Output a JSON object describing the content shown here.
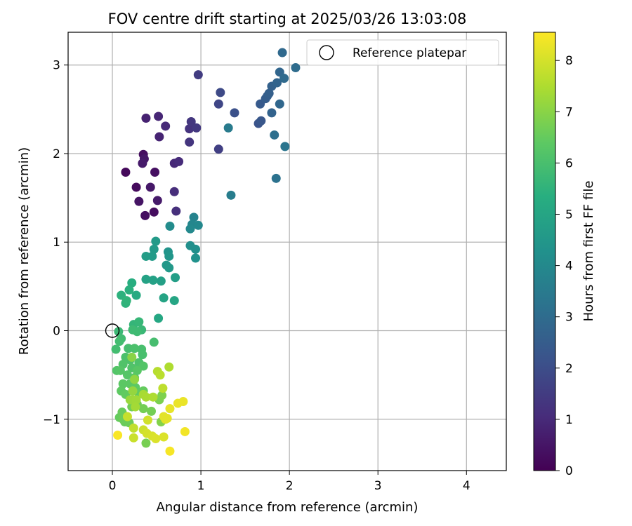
{
  "chart_data": {
    "type": "scatter",
    "title": "FOV centre drift starting at 2025/03/26 13:03:08",
    "xlabel": "Angular distance from reference (arcmin)",
    "ylabel": "Rotation from reference (arcmin)",
    "xlim": [
      -0.5,
      4.45
    ],
    "ylim": [
      -1.58,
      3.37
    ],
    "xticks": [
      "0",
      "1",
      "2",
      "3",
      "4"
    ],
    "yticks": [
      "−1",
      "0",
      "1",
      "2",
      "3"
    ],
    "grid": true,
    "legend": {
      "placement": "top-right",
      "entries": [
        "Reference platepar"
      ]
    },
    "reference_point": {
      "x": 0,
      "y": 0
    },
    "colorbar": {
      "label": "Hours from first FF file",
      "range": [
        0,
        8.55
      ],
      "ticks": [
        "0",
        "1",
        "2",
        "3",
        "4",
        "5",
        "6",
        "7",
        "8"
      ],
      "colormap": "viridis"
    },
    "points": [
      {
        "x": 0.15,
        "y": 1.79,
        "h": 0.2
      },
      {
        "x": 0.27,
        "y": 1.62,
        "h": 0.25
      },
      {
        "x": 0.35,
        "y": 1.99,
        "h": 0.3
      },
      {
        "x": 0.37,
        "y": 1.3,
        "h": 0.35
      },
      {
        "x": 0.47,
        "y": 1.34,
        "h": 0.3
      },
      {
        "x": 0.48,
        "y": 1.79,
        "h": 0.35
      },
      {
        "x": 0.3,
        "y": 1.46,
        "h": 0.45
      },
      {
        "x": 0.36,
        "y": 1.94,
        "h": 0.5
      },
      {
        "x": 0.34,
        "y": 1.89,
        "h": 0.6
      },
      {
        "x": 0.43,
        "y": 1.62,
        "h": 0.55
      },
      {
        "x": 0.51,
        "y": 1.47,
        "h": 0.6
      },
      {
        "x": 0.38,
        "y": 2.4,
        "h": 0.8
      },
      {
        "x": 0.52,
        "y": 2.42,
        "h": 0.9
      },
      {
        "x": 0.53,
        "y": 2.19,
        "h": 0.85
      },
      {
        "x": 0.6,
        "y": 2.31,
        "h": 1.0
      },
      {
        "x": 0.7,
        "y": 1.89,
        "h": 0.95
      },
      {
        "x": 0.75,
        "y": 1.91,
        "h": 1.05
      },
      {
        "x": 0.7,
        "y": 1.57,
        "h": 1.1
      },
      {
        "x": 0.72,
        "y": 1.35,
        "h": 1.15
      },
      {
        "x": 0.87,
        "y": 2.13,
        "h": 1.3
      },
      {
        "x": 0.87,
        "y": 2.28,
        "h": 1.25
      },
      {
        "x": 0.89,
        "y": 2.36,
        "h": 1.35
      },
      {
        "x": 0.95,
        "y": 2.29,
        "h": 1.4
      },
      {
        "x": 0.97,
        "y": 2.89,
        "h": 1.5
      },
      {
        "x": 1.2,
        "y": 2.05,
        "h": 1.6
      },
      {
        "x": 1.2,
        "y": 2.56,
        "h": 1.8
      },
      {
        "x": 1.22,
        "y": 2.69,
        "h": 1.9
      },
      {
        "x": 1.38,
        "y": 2.46,
        "h": 2.1
      },
      {
        "x": 1.65,
        "y": 2.34,
        "h": 2.2
      },
      {
        "x": 1.68,
        "y": 2.37,
        "h": 2.3
      },
      {
        "x": 1.67,
        "y": 2.56,
        "h": 2.4
      },
      {
        "x": 1.73,
        "y": 2.62,
        "h": 2.5
      },
      {
        "x": 1.75,
        "y": 2.65,
        "h": 2.55
      },
      {
        "x": 1.77,
        "y": 2.68,
        "h": 2.6
      },
      {
        "x": 1.8,
        "y": 2.76,
        "h": 2.65
      },
      {
        "x": 1.8,
        "y": 2.46,
        "h": 2.7
      },
      {
        "x": 1.86,
        "y": 2.8,
        "h": 2.75
      },
      {
        "x": 1.89,
        "y": 2.92,
        "h": 2.8
      },
      {
        "x": 1.89,
        "y": 2.56,
        "h": 2.85
      },
      {
        "x": 1.92,
        "y": 3.14,
        "h": 2.9
      },
      {
        "x": 1.94,
        "y": 2.85,
        "h": 2.95
      },
      {
        "x": 2.07,
        "y": 2.97,
        "h": 3.0
      },
      {
        "x": 1.83,
        "y": 2.21,
        "h": 3.1
      },
      {
        "x": 1.85,
        "y": 1.72,
        "h": 3.2
      },
      {
        "x": 1.95,
        "y": 2.08,
        "h": 3.3
      },
      {
        "x": 1.31,
        "y": 2.29,
        "h": 3.5
      },
      {
        "x": 1.34,
        "y": 1.53,
        "h": 3.6
      },
      {
        "x": 0.92,
        "y": 1.28,
        "h": 3.8
      },
      {
        "x": 0.9,
        "y": 1.2,
        "h": 3.9
      },
      {
        "x": 0.88,
        "y": 1.15,
        "h": 4.0
      },
      {
        "x": 0.97,
        "y": 1.19,
        "h": 3.95
      },
      {
        "x": 0.65,
        "y": 1.18,
        "h": 4.1
      },
      {
        "x": 0.88,
        "y": 0.96,
        "h": 4.2
      },
      {
        "x": 0.94,
        "y": 0.92,
        "h": 4.25
      },
      {
        "x": 0.94,
        "y": 0.82,
        "h": 4.3
      },
      {
        "x": 0.63,
        "y": 0.89,
        "h": 4.4
      },
      {
        "x": 0.64,
        "y": 0.84,
        "h": 4.45
      },
      {
        "x": 0.61,
        "y": 0.74,
        "h": 4.5
      },
      {
        "x": 0.64,
        "y": 0.71,
        "h": 4.55
      },
      {
        "x": 0.47,
        "y": 0.92,
        "h": 4.6
      },
      {
        "x": 0.49,
        "y": 1.01,
        "h": 4.6
      },
      {
        "x": 0.45,
        "y": 0.84,
        "h": 4.65
      },
      {
        "x": 0.38,
        "y": 0.84,
        "h": 4.7
      },
      {
        "x": 0.71,
        "y": 0.6,
        "h": 4.75
      },
      {
        "x": 0.55,
        "y": 0.56,
        "h": 4.8
      },
      {
        "x": 0.46,
        "y": 0.57,
        "h": 4.85
      },
      {
        "x": 0.38,
        "y": 0.58,
        "h": 4.9
      },
      {
        "x": 0.58,
        "y": 0.37,
        "h": 4.95
      },
      {
        "x": 0.7,
        "y": 0.34,
        "h": 5.0
      },
      {
        "x": 0.52,
        "y": 0.14,
        "h": 5.1
      },
      {
        "x": 0.27,
        "y": 0.4,
        "h": 5.2
      },
      {
        "x": 0.22,
        "y": 0.54,
        "h": 5.3
      },
      {
        "x": 0.19,
        "y": 0.46,
        "h": 5.4
      },
      {
        "x": 0.1,
        "y": 0.4,
        "h": 5.45
      },
      {
        "x": 0.15,
        "y": 0.31,
        "h": 5.5
      },
      {
        "x": 0.16,
        "y": 0.34,
        "h": 5.55
      },
      {
        "x": 0.24,
        "y": 0.07,
        "h": 5.6
      },
      {
        "x": 0.3,
        "y": 0.1,
        "h": 5.65
      },
      {
        "x": 0.33,
        "y": 0.01,
        "h": 5.7
      },
      {
        "x": 0.07,
        "y": -0.01,
        "h": 5.75
      },
      {
        "x": 0.23,
        "y": 0.01,
        "h": 5.8
      },
      {
        "x": 0.28,
        "y": -0.01,
        "h": 5.8
      },
      {
        "x": 0.1,
        "y": -0.09,
        "h": 5.85
      },
      {
        "x": 0.08,
        "y": -0.12,
        "h": 5.9
      },
      {
        "x": 0.04,
        "y": -0.21,
        "h": 5.9
      },
      {
        "x": 0.47,
        "y": -0.13,
        "h": 5.95
      },
      {
        "x": 0.18,
        "y": -0.2,
        "h": 5.95
      },
      {
        "x": 0.33,
        "y": -0.21,
        "h": 6.0
      },
      {
        "x": 0.34,
        "y": -0.27,
        "h": 6.0
      },
      {
        "x": 0.15,
        "y": -0.3,
        "h": 6.05
      },
      {
        "x": 0.25,
        "y": -0.2,
        "h": 6.05
      },
      {
        "x": 0.2,
        "y": -0.33,
        "h": 6.1
      },
      {
        "x": 0.3,
        "y": -0.36,
        "h": 6.1
      },
      {
        "x": 0.12,
        "y": -0.38,
        "h": 6.15
      },
      {
        "x": 0.22,
        "y": -0.42,
        "h": 6.15
      },
      {
        "x": 0.35,
        "y": -0.4,
        "h": 6.2
      },
      {
        "x": 0.05,
        "y": -0.45,
        "h": 6.2
      },
      {
        "x": 0.09,
        "y": -0.45,
        "h": 6.25
      },
      {
        "x": 0.17,
        "y": -0.5,
        "h": 6.25
      },
      {
        "x": 0.25,
        "y": -0.53,
        "h": 6.3
      },
      {
        "x": 0.28,
        "y": -0.45,
        "h": 6.3
      },
      {
        "x": 0.12,
        "y": -0.6,
        "h": 6.35
      },
      {
        "x": 0.2,
        "y": -0.6,
        "h": 6.35
      },
      {
        "x": 0.26,
        "y": -0.64,
        "h": 6.4
      },
      {
        "x": 0.1,
        "y": -0.68,
        "h": 6.4
      },
      {
        "x": 0.15,
        "y": -0.72,
        "h": 6.45
      },
      {
        "x": 0.3,
        "y": -0.71,
        "h": 6.45
      },
      {
        "x": 0.35,
        "y": -0.68,
        "h": 6.5
      },
      {
        "x": 0.08,
        "y": -0.98,
        "h": 6.5
      },
      {
        "x": 0.11,
        "y": -0.92,
        "h": 6.55
      },
      {
        "x": 0.14,
        "y": -1.03,
        "h": 6.55
      },
      {
        "x": 0.19,
        "y": -1.04,
        "h": 6.6
      },
      {
        "x": 0.12,
        "y": -1.0,
        "h": 6.6
      },
      {
        "x": 0.22,
        "y": -0.86,
        "h": 6.65
      },
      {
        "x": 0.28,
        "y": -0.83,
        "h": 6.65
      },
      {
        "x": 0.35,
        "y": -0.88,
        "h": 6.7
      },
      {
        "x": 0.44,
        "y": -0.91,
        "h": 6.7
      },
      {
        "x": 0.38,
        "y": -1.27,
        "h": 6.75
      },
      {
        "x": 0.53,
        "y": -0.78,
        "h": 6.8
      },
      {
        "x": 0.56,
        "y": -0.73,
        "h": 6.85
      },
      {
        "x": 0.55,
        "y": -1.03,
        "h": 6.9
      },
      {
        "x": 0.22,
        "y": -0.3,
        "h": 7.0
      },
      {
        "x": 0.25,
        "y": -0.55,
        "h": 7.1
      },
      {
        "x": 0.23,
        "y": -0.68,
        "h": 7.15
      },
      {
        "x": 0.2,
        "y": -0.78,
        "h": 7.2
      },
      {
        "x": 0.23,
        "y": -0.78,
        "h": 7.25
      },
      {
        "x": 0.27,
        "y": -0.78,
        "h": 7.3
      },
      {
        "x": 0.26,
        "y": -0.86,
        "h": 7.35
      },
      {
        "x": 0.35,
        "y": -0.72,
        "h": 7.4
      },
      {
        "x": 0.38,
        "y": -0.75,
        "h": 7.45
      },
      {
        "x": 0.46,
        "y": -0.75,
        "h": 7.5
      },
      {
        "x": 0.64,
        "y": -0.41,
        "h": 7.5
      },
      {
        "x": 0.51,
        "y": -0.46,
        "h": 7.6
      },
      {
        "x": 0.54,
        "y": -0.5,
        "h": 7.65
      },
      {
        "x": 0.57,
        "y": -0.65,
        "h": 7.7
      },
      {
        "x": 0.24,
        "y": -1.1,
        "h": 7.75
      },
      {
        "x": 0.17,
        "y": -0.97,
        "h": 7.8
      },
      {
        "x": 0.24,
        "y": -1.21,
        "h": 7.85
      },
      {
        "x": 0.35,
        "y": -1.12,
        "h": 7.9
      },
      {
        "x": 0.4,
        "y": -1.01,
        "h": 7.95
      },
      {
        "x": 0.39,
        "y": -1.16,
        "h": 8.0
      },
      {
        "x": 0.45,
        "y": -1.19,
        "h": 8.05
      },
      {
        "x": 0.49,
        "y": -1.22,
        "h": 8.1
      },
      {
        "x": 0.58,
        "y": -1.2,
        "h": 8.1
      },
      {
        "x": 0.6,
        "y": -1.0,
        "h": 8.15
      },
      {
        "x": 0.58,
        "y": -0.97,
        "h": 8.2
      },
      {
        "x": 0.62,
        "y": -0.99,
        "h": 8.2
      },
      {
        "x": 0.65,
        "y": -0.88,
        "h": 8.25
      },
      {
        "x": 0.74,
        "y": -0.82,
        "h": 8.3
      },
      {
        "x": 0.8,
        "y": -0.8,
        "h": 8.3
      },
      {
        "x": 0.82,
        "y": -1.14,
        "h": 8.4
      },
      {
        "x": 0.65,
        "y": -1.36,
        "h": 8.45
      },
      {
        "x": 0.06,
        "y": -1.18,
        "h": 8.5
      }
    ]
  }
}
